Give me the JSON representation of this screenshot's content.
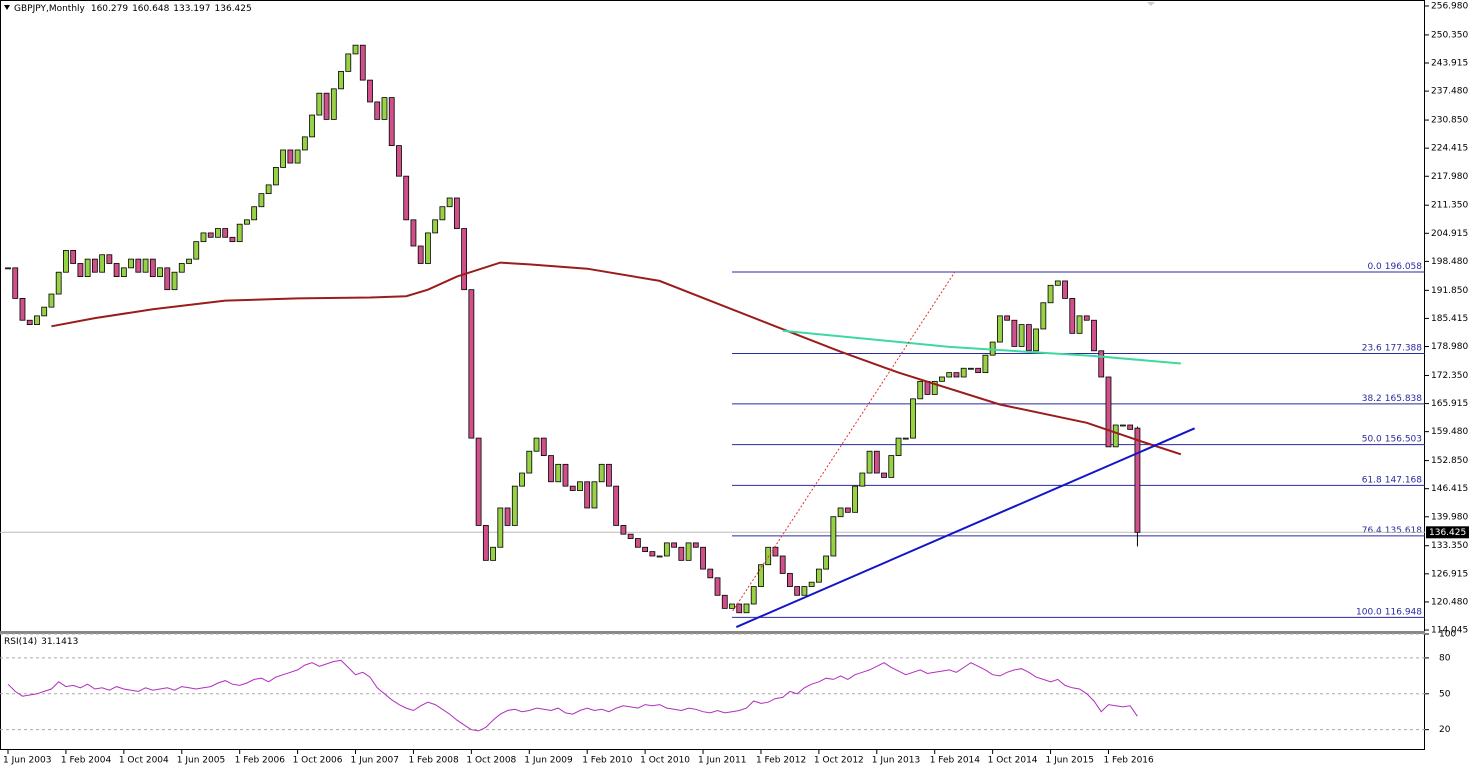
{
  "header": {
    "symbol": "GBPJPY,Monthly",
    "open": 160.279,
    "high": 160.648,
    "low": 133.197,
    "close": 136.425
  },
  "chart_data": [
    {
      "type": "candlestick",
      "up_color": "#98d046",
      "down_color": "#d0508a",
      "categories": [
        "1 Jun 2003",
        null,
        null,
        null,
        null,
        null,
        null,
        null,
        "1 Feb 2004",
        null,
        null,
        null,
        null,
        null,
        null,
        null,
        "1 Oct 2004",
        null,
        null,
        null,
        null,
        null,
        null,
        null,
        "1 Jun 2005",
        null,
        null,
        null,
        null,
        null,
        null,
        null,
        "1 Feb 2006",
        null,
        null,
        null,
        null,
        null,
        null,
        null,
        "1 Oct 2006",
        null,
        null,
        null,
        null,
        null,
        null,
        null,
        "1 Jun 2007",
        null,
        null,
        null,
        null,
        null,
        null,
        null,
        "1 Feb 2008",
        null,
        null,
        null,
        null,
        null,
        null,
        null,
        "1 Oct 2008",
        null,
        null,
        null,
        null,
        null,
        null,
        null,
        "1 Jun 2009",
        null,
        null,
        null,
        null,
        null,
        null,
        null,
        "1 Feb 2010",
        null,
        null,
        null,
        null,
        null,
        null,
        null,
        "1 Oct 2010",
        null,
        null,
        null,
        null,
        null,
        null,
        null,
        "1 Jun 2011",
        null,
        null,
        null,
        null,
        null,
        null,
        null,
        "1 Feb 2012",
        null,
        null,
        null,
        null,
        null,
        null,
        null,
        "1 Oct 2012",
        null,
        null,
        null,
        null,
        null,
        null,
        null,
        "1 Jun 2013",
        null,
        null,
        null,
        null,
        null,
        null,
        null,
        "1 Feb 2014",
        null,
        null,
        null,
        null,
        null,
        null,
        null,
        "1 Oct 2014",
        null,
        null,
        null,
        null,
        null,
        null,
        null,
        "1 Jun 2015",
        null,
        null,
        null,
        null,
        null,
        null,
        null,
        "1 Feb 2016",
        null,
        null,
        null,
        null
      ],
      "closes": [
        197,
        190,
        185,
        184,
        186,
        188,
        191,
        196,
        201,
        198,
        195,
        199,
        196,
        200,
        198,
        195,
        197,
        199,
        196,
        199,
        195,
        197,
        192,
        196,
        198,
        199,
        203,
        205,
        204,
        206,
        204,
        203,
        207,
        208,
        211,
        214,
        216,
        220,
        224,
        221,
        224,
        227,
        232,
        237,
        231,
        238,
        242,
        246,
        248,
        240,
        235,
        231,
        236,
        225,
        218,
        208,
        202,
        198,
        205,
        208,
        211,
        213,
        206,
        192,
        158,
        138,
        130,
        133,
        142,
        138,
        147,
        150,
        155,
        158,
        154,
        148,
        152,
        147,
        146,
        148,
        142,
        148,
        152,
        147,
        138,
        136,
        135,
        133,
        132,
        131,
        131,
        134,
        133,
        130,
        134,
        133,
        128,
        126,
        122,
        119,
        120,
        118,
        120,
        124,
        129,
        133,
        131,
        127,
        124,
        122,
        124,
        125,
        128,
        131,
        140,
        142,
        141,
        147,
        150,
        155,
        150,
        149,
        154,
        158,
        158,
        167,
        171,
        168,
        171,
        172,
        173,
        172,
        174,
        174,
        173,
        177,
        180,
        186,
        185,
        179,
        184,
        178,
        183,
        189,
        193,
        194,
        190,
        182,
        186,
        185,
        178,
        172,
        156,
        161,
        161,
        160,
        136.425
      ],
      "ylim": [
        113.82,
        258.35
      ],
      "yticks": [
        {
          "value": 256.98,
          "label": "256.980"
        },
        {
          "value": 250.35,
          "label": "250.350"
        },
        {
          "value": 243.915,
          "label": "243.915"
        },
        {
          "value": 237.48,
          "label": "237.480"
        },
        {
          "value": 230.85,
          "label": "230.850"
        },
        {
          "value": 224.415,
          "label": "224.415"
        },
        {
          "value": 217.98,
          "label": "217.980"
        },
        {
          "value": 211.35,
          "label": "211.350"
        },
        {
          "value": 204.915,
          "label": "204.915"
        },
        {
          "value": 198.48,
          "label": "198.480"
        },
        {
          "value": 191.85,
          "label": "191.850"
        },
        {
          "value": 185.415,
          "label": "185.415"
        },
        {
          "value": 178.98,
          "label": "178.980"
        },
        {
          "value": 172.35,
          "label": "172.350"
        },
        {
          "value": 165.915,
          "label": "165.915"
        },
        {
          "value": 159.48,
          "label": "159.480"
        },
        {
          "value": 152.85,
          "label": "152.850"
        },
        {
          "value": 146.415,
          "label": "146.415"
        },
        {
          "value": 139.98,
          "label": "139.980"
        },
        {
          "value": 133.35,
          "label": "133.350"
        },
        {
          "value": 126.915,
          "label": "126.915"
        },
        {
          "value": 120.48,
          "label": "120.480"
        },
        {
          "value": 114.045,
          "label": "114.045"
        }
      ],
      "overlays": [
        {
          "color": "#9b1c1c",
          "x": [
            6,
            12,
            20,
            30,
            40,
            50,
            55,
            58,
            62,
            68,
            72,
            80,
            90,
            100,
            106,
            115,
            123,
            137,
            149,
            157,
            162
          ],
          "values": [
            183.6,
            185.5,
            187.5,
            189.5,
            190,
            190.2,
            190.5,
            192,
            195,
            198.2,
            197.8,
            196.8,
            194,
            187.5,
            183.6,
            177.8,
            173,
            165.7,
            161.5,
            157,
            154.3
          ]
        },
        {
          "color": "#3ed9a0",
          "x": [
            107,
            130,
            150,
            162
          ],
          "values": [
            182.6,
            178.9,
            176.8,
            175.1
          ]
        }
      ],
      "trendlines": [
        {
          "color": "#1414c8",
          "dashed": false,
          "x": [
            100.6,
            163.9
          ],
          "values": [
            114.73,
            160.24
          ]
        },
        {
          "color": "#e03030",
          "dashed": true,
          "x": [
            100.1,
            130.8
          ],
          "values": [
            118.4,
            196.1
          ]
        }
      ],
      "fibonacci": {
        "color": "#2a2aa0",
        "start_x": 100,
        "levels": [
          {
            "label": "0.0",
            "value": 196.058
          },
          {
            "label": "23.6",
            "value": 177.388
          },
          {
            "label": "38.2",
            "value": 165.838
          },
          {
            "label": "50.0",
            "value": 156.503
          },
          {
            "label": "61.8",
            "value": 147.168
          },
          {
            "label": "76.4",
            "value": 135.618
          },
          {
            "label": "100.0",
            "value": 116.948
          }
        ]
      }
    },
    {
      "type": "line",
      "title": "RSI(14)",
      "color": "#b02fc0",
      "values": [
        58,
        52,
        48,
        49,
        50,
        52,
        54,
        60,
        56,
        57,
        55,
        58,
        54,
        55,
        53,
        56,
        54,
        53,
        52,
        55,
        53,
        54,
        55,
        53,
        56,
        55,
        54,
        55,
        56,
        59,
        61,
        58,
        57,
        59,
        62,
        63,
        60,
        64,
        66,
        68,
        70,
        74,
        76,
        73,
        75,
        77,
        78,
        72,
        66,
        68,
        64,
        55,
        50,
        45,
        41,
        38,
        36,
        40,
        43,
        41,
        37,
        33,
        28,
        24,
        20,
        19,
        22,
        28,
        33,
        36,
        37,
        35,
        36,
        38,
        37,
        36,
        38,
        34,
        33,
        36,
        38,
        36,
        37,
        35,
        38,
        40,
        39,
        38,
        41,
        40,
        41,
        38,
        37,
        36,
        38,
        37,
        35,
        34,
        36,
        34,
        35,
        36,
        38,
        44,
        42,
        43,
        46,
        47,
        52,
        50,
        55,
        58,
        60,
        63,
        62,
        65,
        62,
        66,
        68,
        70,
        73,
        76,
        72,
        69,
        66,
        68,
        70,
        67,
        68,
        69,
        70,
        68,
        72,
        76,
        73,
        70,
        66,
        65,
        68,
        70,
        71,
        68,
        64,
        62,
        60,
        62,
        57,
        55,
        54,
        50,
        44,
        35,
        41,
        40,
        39,
        40,
        31.1413
      ],
      "ylim": [
        3,
        100
      ],
      "yticks": [
        100,
        80,
        50,
        20
      ]
    }
  ]
}
